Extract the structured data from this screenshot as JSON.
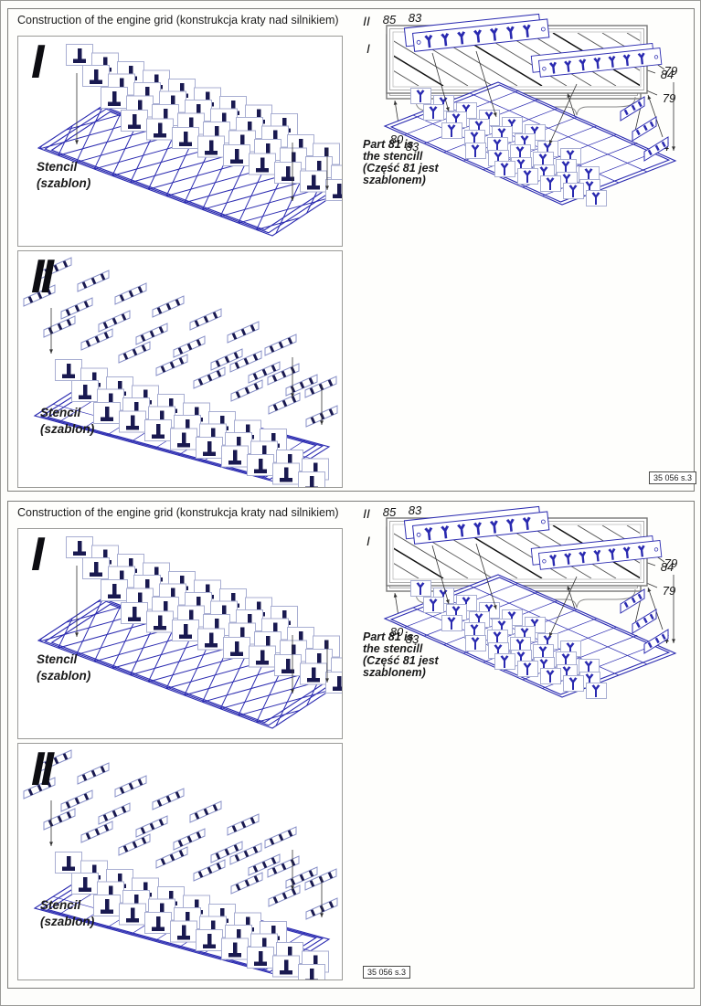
{
  "colors": {
    "line_blue": "#2a2ab0",
    "navy": "#191950",
    "plate_outline": "#a8aed2",
    "hatch": "#555555"
  },
  "panels": [
    {
      "title": "Construction of the engine grid (konstrukcja kraty nad silnikiem)",
      "figures_left": [
        {
          "step": "I",
          "caption": [
            "Stencil",
            "(szablon)"
          ]
        },
        {
          "step": "II",
          "caption": [
            "Stencil",
            "(szablon)"
          ]
        }
      ],
      "part_diagram_1": {
        "step": "I",
        "top_labels": [
          "85",
          "83"
        ],
        "right_labels": [
          "84",
          "79"
        ],
        "bottom_labels": [
          "80",
          "86",
          "80"
        ]
      },
      "part_diagram_2": {
        "step": "II",
        "bottom_labels": [
          "83",
          "85",
          "80",
          "86",
          "80",
          "84"
        ],
        "right_labels": [
          "79"
        ]
      },
      "note": [
        "Part 81 is",
        "the stencill",
        "(Część 81 jest",
        "szablonem)"
      ],
      "sheet_number": "35 056 s.3"
    },
    {
      "title": "Construction of the engine grid (konstrukcja kraty nad silnikiem)",
      "figures_left": [
        {
          "step": "I",
          "caption": [
            "Stencil",
            "(szablon)"
          ]
        },
        {
          "step": "II",
          "caption": [
            "Stencil",
            "(szablon)"
          ]
        }
      ],
      "part_diagram_1": {
        "step": "I",
        "top_labels": [
          "85",
          "83"
        ],
        "right_labels": [
          "84",
          "79"
        ],
        "bottom_labels": [
          "80",
          "86",
          "80"
        ]
      },
      "part_diagram_2": {
        "step": "II",
        "bottom_labels": [
          "83",
          "85",
          "80",
          "86",
          "80",
          "84"
        ],
        "right_labels": [
          "79"
        ]
      },
      "note": [
        "Part 81 is",
        "the stencill",
        "(Część 81 jest",
        "szablonem)"
      ],
      "sheet_number": "35 056 s.3"
    }
  ]
}
